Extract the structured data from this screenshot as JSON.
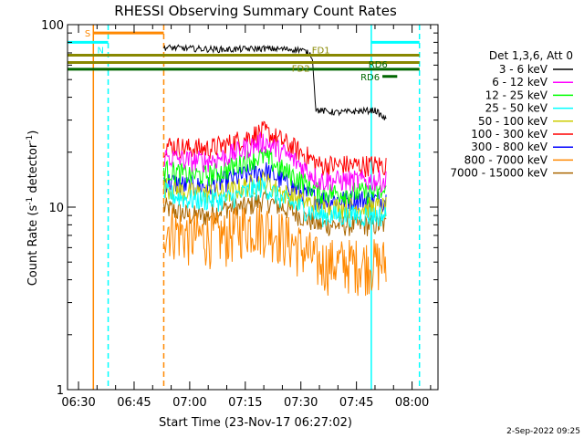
{
  "chart_data": {
    "type": "line",
    "title": "RHESSI Observing Summary Count Rates",
    "xlabel": "Start Time (23-Nov-17 06:27:02)",
    "ylabel": "Count Rate (s⁻¹ detector⁻¹)",
    "ylabel_main": "Count Rate (s",
    "ylabel_sup1": "-1",
    "ylabel_mid": " detector",
    "ylabel_sup2": "-1",
    "ylabel_end": ")",
    "yscale": "log",
    "ylim": [
      1,
      100
    ],
    "xlim": [
      "06:27:02",
      "08:07:00"
    ],
    "y_ticks": [
      {
        "value": 1,
        "label": "1"
      },
      {
        "value": 10,
        "label": "10"
      },
      {
        "value": 100,
        "label": "100"
      }
    ],
    "x_ticks": [
      {
        "value": "06:30",
        "label": "06:30"
      },
      {
        "value": "06:45",
        "label": "06:45"
      },
      {
        "value": "07:00",
        "label": "07:00"
      },
      {
        "value": "07:15",
        "label": "07:15"
      },
      {
        "value": "07:30",
        "label": "07:30"
      },
      {
        "value": "07:45",
        "label": "07:45"
      },
      {
        "value": "08:00",
        "label": "08:00"
      }
    ],
    "legend_title": "Det 1,3,6, Att 0",
    "legend_position": "right",
    "series": [
      {
        "name": "3 - 6 keV",
        "color": "#000000",
        "x": [
          "06:53",
          "07:00",
          "07:10",
          "07:20",
          "07:30",
          "07:33",
          "07:34",
          "07:40",
          "07:50",
          "07:53"
        ],
        "values": [
          75,
          74,
          73,
          74,
          73,
          68,
          34,
          33,
          34,
          30
        ]
      },
      {
        "name": "6 - 12 keV",
        "color": "#ff00ff",
        "x": [
          "06:53",
          "07:00",
          "07:05",
          "07:10",
          "07:15",
          "07:20",
          "07:25",
          "07:30",
          "07:35",
          "07:40",
          "07:45",
          "07:50",
          "07:53"
        ],
        "values": [
          19,
          18,
          18,
          19,
          21,
          23,
          20,
          17,
          14,
          14,
          14,
          14,
          14
        ]
      },
      {
        "name": "12 - 25 keV",
        "color": "#00ff00",
        "x": [
          "06:53",
          "07:00",
          "07:05",
          "07:10",
          "07:15",
          "07:20",
          "07:25",
          "07:30",
          "07:35",
          "07:40",
          "07:45",
          "07:50",
          "07:53"
        ],
        "values": [
          16,
          15,
          15,
          16,
          18,
          19,
          16,
          14,
          12,
          12,
          12,
          12,
          12
        ]
      },
      {
        "name": "25 - 50 keV",
        "color": "#00ffff",
        "x": [
          "06:53",
          "07:00",
          "07:05",
          "07:10",
          "07:15",
          "07:20",
          "07:25",
          "07:30",
          "07:35",
          "07:40",
          "07:45",
          "07:50",
          "07:53"
        ],
        "values": [
          12,
          11,
          11,
          11,
          12,
          13,
          11,
          10,
          9,
          9,
          9,
          9,
          9
        ]
      },
      {
        "name": "50 - 100 keV",
        "color": "#cccc00",
        "x": [
          "06:53",
          "07:00",
          "07:05",
          "07:10",
          "07:15",
          "07:20",
          "07:25",
          "07:30",
          "07:35",
          "07:40",
          "07:45",
          "07:50",
          "07:53"
        ],
        "values": [
          13,
          12,
          12,
          12,
          13,
          14,
          12,
          11,
          10,
          10,
          10,
          10,
          10
        ]
      },
      {
        "name": "100 - 300 keV",
        "color": "#ff0000",
        "x": [
          "06:53",
          "07:00",
          "07:05",
          "07:10",
          "07:15",
          "07:20",
          "07:25",
          "07:30",
          "07:35",
          "07:40",
          "07:45",
          "07:50",
          "07:53"
        ],
        "values": [
          22,
          21,
          21,
          22,
          24,
          26,
          23,
          20,
          17,
          17,
          17,
          17,
          17
        ]
      },
      {
        "name": "300 - 800 keV",
        "color": "#0000ff",
        "x": [
          "06:53",
          "07:00",
          "07:05",
          "07:10",
          "07:15",
          "07:20",
          "07:25",
          "07:30",
          "07:35",
          "07:40",
          "07:45",
          "07:50",
          "07:53"
        ],
        "values": [
          14,
          13,
          13,
          14,
          15,
          16,
          14,
          12,
          11,
          11,
          11,
          11,
          11
        ]
      },
      {
        "name": "800 - 7000 keV",
        "color": "#ff8800",
        "x": [
          "06:53",
          "07:00",
          "07:05",
          "07:10",
          "07:15",
          "07:20",
          "07:25",
          "07:30",
          "07:35",
          "07:40",
          "07:45",
          "07:50",
          "07:53"
        ],
        "values": [
          8,
          7,
          7,
          7,
          8,
          8,
          7,
          6,
          5,
          5,
          5,
          5,
          5
        ]
      },
      {
        "name": "7000 - 15000 keV",
        "color": "#aa6600",
        "x": [
          "06:53",
          "07:00",
          "07:05",
          "07:10",
          "07:15",
          "07:20",
          "07:25",
          "07:30",
          "07:35",
          "07:40",
          "07:45",
          "07:50",
          "07:53"
        ],
        "values": [
          10,
          9,
          9,
          10,
          10,
          11,
          10,
          9,
          8,
          8,
          8,
          8,
          8
        ]
      }
    ],
    "vertical_markers": [
      {
        "time": "06:34",
        "color": "#ff8800",
        "style": "solid"
      },
      {
        "time": "06:38",
        "color": "#00ffff",
        "style": "dashed"
      },
      {
        "time": "06:53",
        "color": "#ff8800",
        "style": "dashed"
      },
      {
        "time": "07:49",
        "color": "#00ffff",
        "style": "solid"
      },
      {
        "time": "08:02",
        "color": "#00ffff",
        "style": "dashed"
      }
    ],
    "flag_bars": [
      {
        "label": "S",
        "label_side": "left",
        "start": "06:34",
        "end": "06:53",
        "y": 90,
        "color": "#ff8800"
      },
      {
        "label": "N",
        "label_side": "right",
        "start": "06:27:02",
        "end": "06:38",
        "y": 80,
        "color": "#00ffff"
      },
      {
        "label": "",
        "label_side": "none",
        "start": "07:49",
        "end": "08:02",
        "y": 80,
        "color": "#00ffff"
      },
      {
        "label": "FD1",
        "label_side": "inline",
        "start": "06:27:02",
        "end": "08:02",
        "y": 68,
        "color": "#888800"
      },
      {
        "label": "FD2",
        "label_side": "inline",
        "start": "06:27:02",
        "end": "08:02",
        "y": 62,
        "color": "#888800"
      },
      {
        "label": "RD6",
        "label_side": "inline",
        "start": "06:27:02",
        "end": "08:02",
        "y": 57,
        "color": "#006600"
      },
      {
        "label": "RD6",
        "label_side": "left",
        "start": "07:52",
        "end": "07:56",
        "y": 52,
        "color": "#006600"
      }
    ]
  },
  "footer": {
    "date_stamp": "2-Sep-2022 09:25"
  }
}
